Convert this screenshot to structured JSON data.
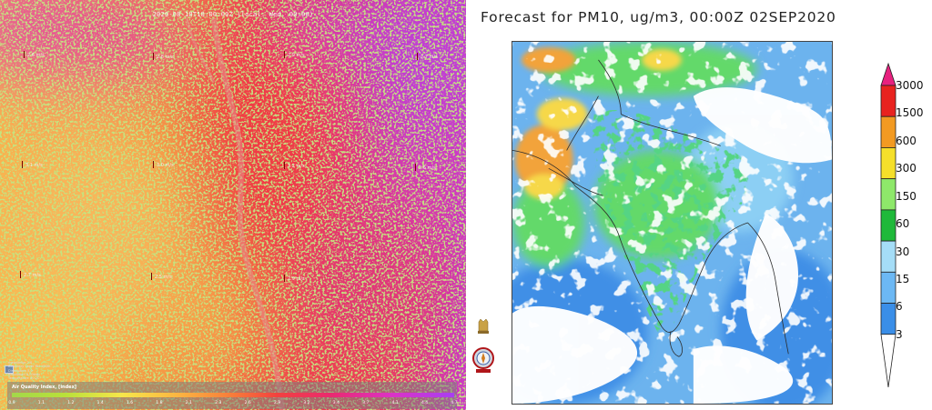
{
  "left_panel": {
    "timestamp": "2020-08-18T18:00:00Z (local: Wed. 00:00)",
    "wind_markers": [
      {
        "label": "2.6 m/s"
      },
      {
        "label": "2.8 m/s"
      },
      {
        "label": "2.9 m/s"
      },
      {
        "label": "2.7 m/s"
      },
      {
        "label": "3.1 m/s"
      },
      {
        "label": "3.0 m/s"
      },
      {
        "label": "3.2 m/s"
      },
      {
        "label": "2.6 m/s"
      },
      {
        "label": "2.7 m/s"
      },
      {
        "label": "2.5 m/s"
      },
      {
        "label": "2.9 m/s"
      }
    ],
    "info_lines": [
      "meteoblue 2.0",
      "Boundary Layer RH 100m",
      "Dissolution 5.0",
      "Resolution 0.03deg",
      "Temperature 30.2C"
    ],
    "legend": {
      "title": "Air Quality Index, [index]",
      "ticks": [
        "0.9",
        "1.1",
        "1.2",
        "1.4",
        "1.6",
        "1.8",
        "2.1",
        "2.3",
        "2.6",
        "2.9",
        "3.2",
        "3.4",
        "3.7",
        "4.1",
        "4.4",
        "4.7"
      ],
      "gradient_colors": [
        "#a3d84a",
        "#b9e03a",
        "#f7e64a",
        "#fbb341",
        "#f77b3a",
        "#f2423f",
        "#ea2a6f",
        "#db33c6",
        "#a83ef2"
      ]
    }
  },
  "right_panel": {
    "title": "Forecast for PM10, ug/m3, 00:00Z 02SEP2020",
    "colorbar": {
      "labels": [
        "3000",
        "1500",
        "600",
        "300",
        "150",
        "60",
        "30",
        "15",
        "6",
        "3"
      ],
      "colors": [
        "#e8217f",
        "#e8231f",
        "#f29a22",
        "#f5df2a",
        "#8ee86a",
        "#1fb93a",
        "#a5ddf7",
        "#6cb8f4",
        "#3a8ee8",
        "#ffffff"
      ]
    },
    "palette": {
      "low": "#3f8fe6",
      "mid": "#73b8f0",
      "light": "#a7dcf6",
      "green_light": "#63d96b",
      "green_dark": "#16a83a",
      "yellow": "#f6d84a",
      "orange": "#f2a33a",
      "cloud": "#ffffff",
      "border": "#333333"
    }
  }
}
